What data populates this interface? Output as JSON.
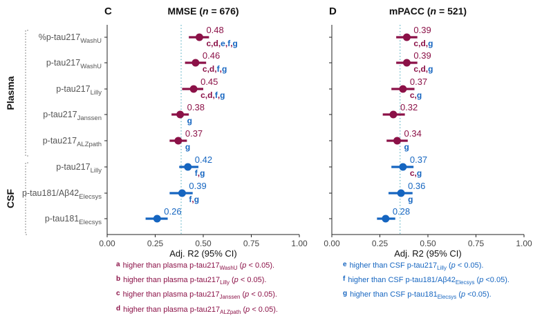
{
  "colors": {
    "plasma": "#8b1147",
    "csf": "#1565c0",
    "ref": "#5fb3c4",
    "axis": "#222222",
    "bracket": "#888888"
  },
  "groups": [
    {
      "label": "Plasma",
      "from": 0,
      "to": 4
    },
    {
      "label": "CSF",
      "from": 5,
      "to": 7
    }
  ],
  "biomarkers": [
    {
      "base": "%p-tau217",
      "sub": "WashU",
      "group": "plasma"
    },
    {
      "base": "p-tau217",
      "sub": "WashU",
      "group": "plasma"
    },
    {
      "base": "p-tau217",
      "sub": "Lilly",
      "group": "plasma"
    },
    {
      "base": "p-tau217",
      "sub": "Janssen",
      "group": "plasma"
    },
    {
      "base": "p-tau217",
      "sub": "ALZpath",
      "group": "plasma"
    },
    {
      "base": "p-tau217",
      "sub": "Lilly",
      "group": "csf"
    },
    {
      "base": "p-tau181/Aβ42",
      "sub": "Elecsys",
      "group": "csf"
    },
    {
      "base": "p-tau181",
      "sub": "Elecsys",
      "group": "csf"
    }
  ],
  "chart_data": [
    {
      "type": "forest",
      "panel_letter": "C",
      "title_prefix": "MMSE (",
      "title_n_label": "n",
      "title_n_value": " = 676)",
      "xlabel": "Adj. R2 (95% CI)",
      "xlim": [
        0,
        1
      ],
      "xticks": [
        "0.00",
        "0.25",
        "0.50",
        "0.75",
        "1.00"
      ],
      "reference_line": 0.385,
      "rows": [
        {
          "value": 0.48,
          "ci": [
            0.425,
            0.53
          ],
          "label": "0.48",
          "letters": [
            {
              "t": "c",
              "c": "plasma"
            },
            {
              "t": "d",
              "c": "plasma"
            },
            {
              "t": "e",
              "c": "csf"
            },
            {
              "t": "f",
              "c": "csf"
            },
            {
              "t": "g",
              "c": "csf"
            }
          ]
        },
        {
          "value": 0.46,
          "ci": [
            0.405,
            0.515
          ],
          "label": "0.46",
          "letters": [
            {
              "t": "c",
              "c": "plasma"
            },
            {
              "t": "d",
              "c": "plasma"
            },
            {
              "t": "f",
              "c": "csf"
            },
            {
              "t": "g",
              "c": "csf"
            }
          ]
        },
        {
          "value": 0.45,
          "ci": [
            0.39,
            0.5
          ],
          "label": "0.45",
          "letters": [
            {
              "t": "c",
              "c": "plasma"
            },
            {
              "t": "d",
              "c": "plasma"
            },
            {
              "t": "f",
              "c": "csf"
            },
            {
              "t": "g",
              "c": "csf"
            }
          ]
        },
        {
          "value": 0.38,
          "ci": [
            0.335,
            0.425
          ],
          "label": "0.38",
          "letters": [
            {
              "t": "g",
              "c": "csf"
            }
          ]
        },
        {
          "value": 0.37,
          "ci": [
            0.325,
            0.415
          ],
          "label": "0.37",
          "letters": [
            {
              "t": "g",
              "c": "csf"
            }
          ]
        },
        {
          "value": 0.42,
          "ci": [
            0.375,
            0.475
          ],
          "label": "0.42",
          "letters": [
            {
              "t": "f",
              "c": "csf"
            },
            {
              "t": "g",
              "c": "csf"
            }
          ]
        },
        {
          "value": 0.39,
          "ci": [
            0.325,
            0.445
          ],
          "label": "0.39",
          "letters": [
            {
              "t": "f",
              "c": "csf"
            },
            {
              "t": "g",
              "c": "csf"
            }
          ]
        },
        {
          "value": 0.26,
          "ci": [
            0.2,
            0.315
          ],
          "label": "0.26",
          "letters": []
        }
      ]
    },
    {
      "type": "forest",
      "panel_letter": "D",
      "title_prefix": "mPACC (",
      "title_n_label": "n",
      "title_n_value": " = 521)",
      "xlabel": "Adj. R2 (95% CI)",
      "xlim": [
        0,
        1
      ],
      "xticks": [
        "0.00",
        "0.25",
        "0.50",
        "0.75",
        "1.00"
      ],
      "reference_line": 0.355,
      "rows": [
        {
          "value": 0.39,
          "ci": [
            0.335,
            0.445
          ],
          "label": "0.39",
          "letters": [
            {
              "t": "c",
              "c": "plasma"
            },
            {
              "t": "d",
              "c": "plasma"
            },
            {
              "t": "g",
              "c": "csf"
            }
          ]
        },
        {
          "value": 0.39,
          "ci": [
            0.335,
            0.445
          ],
          "label": "0.39",
          "letters": [
            {
              "t": "c",
              "c": "plasma"
            },
            {
              "t": "d",
              "c": "plasma"
            },
            {
              "t": "g",
              "c": "csf"
            }
          ]
        },
        {
          "value": 0.37,
          "ci": [
            0.31,
            0.43
          ],
          "label": "0.37",
          "letters": [
            {
              "t": "c",
              "c": "plasma"
            },
            {
              "t": "g",
              "c": "csf"
            }
          ]
        },
        {
          "value": 0.32,
          "ci": [
            0.265,
            0.38
          ],
          "label": "0.32",
          "letters": []
        },
        {
          "value": 0.34,
          "ci": [
            0.285,
            0.395
          ],
          "label": "0.34",
          "letters": [
            {
              "t": "g",
              "c": "csf"
            }
          ]
        },
        {
          "value": 0.37,
          "ci": [
            0.31,
            0.425
          ],
          "label": "0.37",
          "letters": [
            {
              "t": "c",
              "c": "plasma"
            },
            {
              "t": "g",
              "c": "csf"
            }
          ]
        },
        {
          "value": 0.36,
          "ci": [
            0.295,
            0.42
          ],
          "label": "0.36",
          "letters": [
            {
              "t": "g",
              "c": "csf"
            }
          ]
        },
        {
          "value": 0.28,
          "ci": [
            0.235,
            0.33
          ],
          "label": "0.28",
          "letters": []
        }
      ]
    }
  ],
  "footnotes": {
    "plasma": [
      {
        "letter": "a",
        "pre": "higher than plasma p-tau217",
        "sub": "WashU",
        "post": " (",
        "p": "p",
        "tail": " < 0.05)."
      },
      {
        "letter": "b",
        "pre": "higher than plasma p-tau217",
        "sub": "Lilly",
        "post": " (",
        "p": "p",
        "tail": " < 0.05)."
      },
      {
        "letter": "c",
        "pre": "higher than plasma p-tau217",
        "sub": "Janssen",
        "post": " (",
        "p": "p",
        "tail": " < 0.05)."
      },
      {
        "letter": "d",
        "pre": "higher than plasma p-tau217",
        "sub": "ALZpath",
        "post": " (",
        "p": "p",
        "tail": " < 0.05)."
      }
    ],
    "csf": [
      {
        "letter": "e",
        "pre": "higher than CSF p-tau217",
        "sub": "Lilly",
        "post": " (",
        "p": "p",
        "tail": " < 0.05)."
      },
      {
        "letter": "f",
        "pre": "higher than CSF p-tau181/Aβ42",
        "sub": "Elecsys",
        "post": " (",
        "p": "p",
        "tail": " <0.05)."
      },
      {
        "letter": "g",
        "pre": "higher than CSF p-tau181",
        "sub": "Elecsys",
        "post": " (",
        "p": "p",
        "tail": " <0.05)."
      }
    ]
  }
}
